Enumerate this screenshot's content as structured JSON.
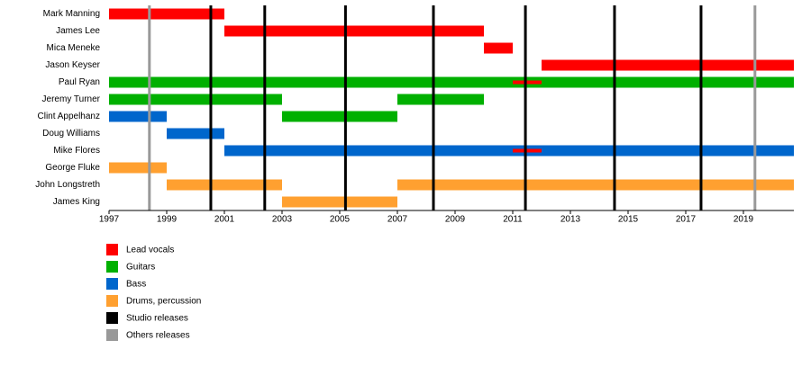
{
  "chart_data": {
    "type": "timeline",
    "xlim": [
      1997,
      2020.75
    ],
    "xticks": [
      1997,
      1999,
      2001,
      2003,
      2005,
      2007,
      2009,
      2011,
      2013,
      2015,
      2017,
      2019
    ],
    "roles": [
      {
        "name": "Lead vocals",
        "color": "#ff0000"
      },
      {
        "name": "Guitars",
        "color": "#00b000"
      },
      {
        "name": "Bass",
        "color": "#0066cc"
      },
      {
        "name": "Drums, percussion",
        "color": "#ffa030"
      }
    ],
    "members": [
      {
        "name": "Mark Manning",
        "bars": [
          {
            "role": 0,
            "start": 1997,
            "end": 2001
          }
        ]
      },
      {
        "name": "James Lee",
        "bars": [
          {
            "role": 0,
            "start": 2001,
            "end": 2010
          }
        ]
      },
      {
        "name": "Mica Meneke",
        "bars": [
          {
            "role": 0,
            "start": 2010,
            "end": 2011
          }
        ]
      },
      {
        "name": "Jason Keyser",
        "bars": [
          {
            "role": 0,
            "start": 2012,
            "end": 2020.75
          }
        ]
      },
      {
        "name": "Paul Ryan",
        "bars": [
          {
            "role": 1,
            "start": 1997,
            "end": 2020.75
          },
          {
            "role": 0,
            "start": 2011,
            "end": 2012,
            "thin": true
          }
        ]
      },
      {
        "name": "Jeremy Turner",
        "bars": [
          {
            "role": 1,
            "start": 1997,
            "end": 2003
          },
          {
            "role": 1,
            "start": 2007,
            "end": 2010
          }
        ]
      },
      {
        "name": "Clint Appelhanz",
        "bars": [
          {
            "role": 2,
            "start": 1997,
            "end": 1999
          },
          {
            "role": 1,
            "start": 2003,
            "end": 2007
          }
        ]
      },
      {
        "name": "Doug Williams",
        "bars": [
          {
            "role": 2,
            "start": 1999,
            "end": 2001
          }
        ]
      },
      {
        "name": "Mike Flores",
        "bars": [
          {
            "role": 2,
            "start": 2001,
            "end": 2020.75
          },
          {
            "role": 0,
            "start": 2011,
            "end": 2012,
            "thin": true
          }
        ]
      },
      {
        "name": "George Fluke",
        "bars": [
          {
            "role": 3,
            "start": 1997,
            "end": 1999
          }
        ]
      },
      {
        "name": "John Longstreth",
        "bars": [
          {
            "role": 3,
            "start": 1999,
            "end": 2003
          },
          {
            "role": 3,
            "start": 2007,
            "end": 2020.75
          }
        ]
      },
      {
        "name": "James King",
        "bars": [
          {
            "role": 3,
            "start": 2003,
            "end": 2007
          }
        ]
      }
    ],
    "releases": [
      {
        "name": "Studio releases",
        "color": "#000000",
        "dates": [
          2000.53,
          2002.4,
          2005.2,
          2008.25,
          2011.44,
          2014.53,
          2017.53
        ]
      },
      {
        "name": "Others releases",
        "color": "#999999",
        "dates": [
          1998.4,
          2019.4
        ]
      }
    ]
  }
}
